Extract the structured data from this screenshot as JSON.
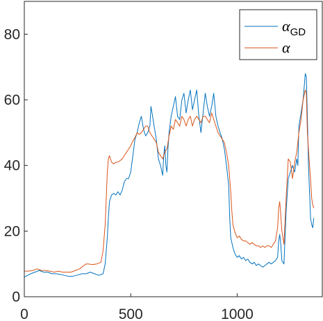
{
  "chart_data": {
    "type": "line",
    "title": "",
    "xlabel": "",
    "ylabel": "",
    "xlim": [
      0,
      1400
    ],
    "ylim": [
      0,
      90
    ],
    "xticks": [
      0,
      500,
      1000
    ],
    "yticks": [
      0,
      20,
      40,
      60,
      80
    ],
    "grid": false,
    "legend_position": "top-right",
    "legend": [
      {
        "main": "α",
        "sub": "GD",
        "color": "#0072BD"
      },
      {
        "main": "α",
        "sub": "",
        "color": "#D95319"
      }
    ],
    "series": [
      {
        "color": "#0072BD",
        "points": [
          [
            0,
            6
          ],
          [
            15,
            6.5
          ],
          [
            30,
            7
          ],
          [
            50,
            7.5
          ],
          [
            70,
            8
          ],
          [
            90,
            7.5
          ],
          [
            110,
            7.5
          ],
          [
            130,
            7
          ],
          [
            150,
            7
          ],
          [
            170,
            6.8
          ],
          [
            190,
            6.5
          ],
          [
            210,
            6.2
          ],
          [
            230,
            6.3
          ],
          [
            250,
            6.6
          ],
          [
            270,
            7
          ],
          [
            290,
            7
          ],
          [
            310,
            7.5
          ],
          [
            330,
            7
          ],
          [
            350,
            6.5
          ],
          [
            370,
            7
          ],
          [
            380,
            10
          ],
          [
            390,
            18
          ],
          [
            395,
            24
          ],
          [
            400,
            29
          ],
          [
            410,
            31
          ],
          [
            420,
            31.5
          ],
          [
            430,
            31
          ],
          [
            440,
            32
          ],
          [
            450,
            31
          ],
          [
            460,
            32.5
          ],
          [
            470,
            35
          ],
          [
            480,
            36
          ],
          [
            490,
            36
          ],
          [
            500,
            38
          ],
          [
            510,
            43
          ],
          [
            520,
            48
          ],
          [
            530,
            50
          ],
          [
            540,
            53
          ],
          [
            550,
            55
          ],
          [
            560,
            51
          ],
          [
            570,
            49
          ],
          [
            580,
            50
          ],
          [
            590,
            52
          ],
          [
            595,
            58
          ],
          [
            600,
            56
          ],
          [
            610,
            52
          ],
          [
            620,
            48
          ],
          [
            630,
            42
          ],
          [
            640,
            40
          ],
          [
            650,
            37
          ],
          [
            655,
            43
          ],
          [
            660,
            46
          ],
          [
            665,
            40
          ],
          [
            670,
            38
          ],
          [
            675,
            45
          ],
          [
            680,
            50
          ],
          [
            690,
            55
          ],
          [
            700,
            58
          ],
          [
            710,
            61
          ],
          [
            720,
            55
          ],
          [
            730,
            54
          ],
          [
            740,
            60
          ],
          [
            750,
            62
          ],
          [
            760,
            56
          ],
          [
            770,
            60
          ],
          [
            780,
            63
          ],
          [
            790,
            57
          ],
          [
            800,
            60
          ],
          [
            810,
            63
          ],
          [
            820,
            55
          ],
          [
            830,
            50
          ],
          [
            840,
            56
          ],
          [
            850,
            62
          ],
          [
            860,
            58
          ],
          [
            870,
            55
          ],
          [
            880,
            58
          ],
          [
            890,
            62
          ],
          [
            900,
            55
          ],
          [
            910,
            52
          ],
          [
            920,
            50
          ],
          [
            930,
            48
          ],
          [
            940,
            45
          ],
          [
            950,
            40
          ],
          [
            960,
            34
          ],
          [
            965,
            24
          ],
          [
            970,
            18
          ],
          [
            980,
            15
          ],
          [
            990,
            13
          ],
          [
            1000,
            12
          ],
          [
            1010,
            12.5
          ],
          [
            1020,
            11.5
          ],
          [
            1030,
            12
          ],
          [
            1040,
            11
          ],
          [
            1050,
            11.5
          ],
          [
            1060,
            10.5
          ],
          [
            1070,
            10
          ],
          [
            1080,
            10.5
          ],
          [
            1090,
            9.5
          ],
          [
            1100,
            10
          ],
          [
            1110,
            9.5
          ],
          [
            1120,
            9
          ],
          [
            1130,
            9.5
          ],
          [
            1140,
            10
          ],
          [
            1150,
            10.5
          ],
          [
            1160,
            10
          ],
          [
            1170,
            10.5
          ],
          [
            1180,
            11
          ],
          [
            1190,
            12
          ],
          [
            1195,
            17
          ],
          [
            1200,
            19
          ],
          [
            1205,
            16
          ],
          [
            1210,
            11
          ],
          [
            1220,
            10
          ],
          [
            1230,
            26
          ],
          [
            1240,
            36
          ],
          [
            1250,
            38
          ],
          [
            1260,
            40
          ],
          [
            1270,
            38
          ],
          [
            1280,
            42
          ],
          [
            1285,
            40
          ],
          [
            1290,
            52
          ],
          [
            1300,
            56
          ],
          [
            1310,
            60
          ],
          [
            1320,
            68
          ],
          [
            1325,
            67
          ],
          [
            1330,
            55
          ],
          [
            1335,
            40
          ],
          [
            1340,
            32
          ],
          [
            1345,
            24
          ],
          [
            1350,
            22
          ],
          [
            1355,
            21
          ],
          [
            1360,
            24
          ]
        ]
      },
      {
        "color": "#D95319",
        "points": [
          [
            0,
            7.8
          ],
          [
            20,
            7.8
          ],
          [
            40,
            8
          ],
          [
            60,
            8.5
          ],
          [
            80,
            8
          ],
          [
            100,
            8
          ],
          [
            120,
            7.8
          ],
          [
            140,
            7.5
          ],
          [
            160,
            7.8
          ],
          [
            180,
            7.5
          ],
          [
            200,
            7.5
          ],
          [
            220,
            7.5
          ],
          [
            240,
            8
          ],
          [
            260,
            8.5
          ],
          [
            280,
            9.5
          ],
          [
            290,
            10
          ],
          [
            300,
            10
          ],
          [
            320,
            9.8
          ],
          [
            340,
            10
          ],
          [
            360,
            10.5
          ],
          [
            370,
            14
          ],
          [
            380,
            22
          ],
          [
            385,
            30
          ],
          [
            390,
            38
          ],
          [
            395,
            42
          ],
          [
            400,
            43
          ],
          [
            410,
            41
          ],
          [
            420,
            40.5
          ],
          [
            430,
            41
          ],
          [
            440,
            41
          ],
          [
            450,
            41.5
          ],
          [
            460,
            42
          ],
          [
            470,
            43
          ],
          [
            480,
            44
          ],
          [
            490,
            45
          ],
          [
            500,
            46
          ],
          [
            510,
            47.5
          ],
          [
            520,
            48.5
          ],
          [
            530,
            50
          ],
          [
            540,
            49.5
          ],
          [
            550,
            50
          ],
          [
            560,
            51
          ],
          [
            570,
            52
          ],
          [
            580,
            52
          ],
          [
            590,
            50
          ],
          [
            600,
            49
          ],
          [
            610,
            48
          ],
          [
            620,
            47
          ],
          [
            630,
            44
          ],
          [
            640,
            43
          ],
          [
            650,
            42
          ],
          [
            660,
            44
          ],
          [
            670,
            45
          ],
          [
            680,
            49
          ],
          [
            690,
            52
          ],
          [
            700,
            51
          ],
          [
            710,
            54
          ],
          [
            720,
            53
          ],
          [
            730,
            52
          ],
          [
            740,
            55
          ],
          [
            750,
            54
          ],
          [
            760,
            52
          ],
          [
            770,
            54
          ],
          [
            780,
            55
          ],
          [
            790,
            52
          ],
          [
            800,
            54
          ],
          [
            810,
            55
          ],
          [
            820,
            54
          ],
          [
            830,
            53
          ],
          [
            840,
            55
          ],
          [
            850,
            55
          ],
          [
            860,
            54
          ],
          [
            870,
            53
          ],
          [
            880,
            56
          ],
          [
            890,
            54
          ],
          [
            900,
            52
          ],
          [
            910,
            50
          ],
          [
            920,
            49
          ],
          [
            930,
            48
          ],
          [
            940,
            47
          ],
          [
            950,
            44
          ],
          [
            960,
            40
          ],
          [
            970,
            32
          ],
          [
            975,
            26
          ],
          [
            980,
            22
          ],
          [
            990,
            19.5
          ],
          [
            1000,
            18
          ],
          [
            1010,
            18.5
          ],
          [
            1020,
            17.5
          ],
          [
            1030,
            17
          ],
          [
            1040,
            17
          ],
          [
            1050,
            16.5
          ],
          [
            1060,
            16
          ],
          [
            1070,
            16.5
          ],
          [
            1080,
            16
          ],
          [
            1090,
            15.5
          ],
          [
            1100,
            15.5
          ],
          [
            1110,
            15
          ],
          [
            1120,
            15.5
          ],
          [
            1130,
            15
          ],
          [
            1140,
            15.5
          ],
          [
            1150,
            15.5
          ],
          [
            1160,
            15
          ],
          [
            1170,
            16
          ],
          [
            1180,
            17
          ],
          [
            1190,
            21
          ],
          [
            1195,
            27
          ],
          [
            1200,
            29
          ],
          [
            1205,
            25
          ],
          [
            1210,
            20
          ],
          [
            1220,
            16
          ],
          [
            1230,
            30
          ],
          [
            1240,
            42
          ],
          [
            1250,
            41
          ],
          [
            1260,
            36
          ],
          [
            1270,
            41
          ],
          [
            1280,
            44
          ],
          [
            1290,
            50
          ],
          [
            1300,
            54
          ],
          [
            1310,
            60
          ],
          [
            1320,
            63
          ],
          [
            1325,
            62
          ],
          [
            1330,
            50
          ],
          [
            1340,
            40
          ],
          [
            1345,
            36
          ],
          [
            1350,
            30
          ],
          [
            1355,
            28
          ],
          [
            1360,
            27
          ]
        ]
      }
    ]
  }
}
